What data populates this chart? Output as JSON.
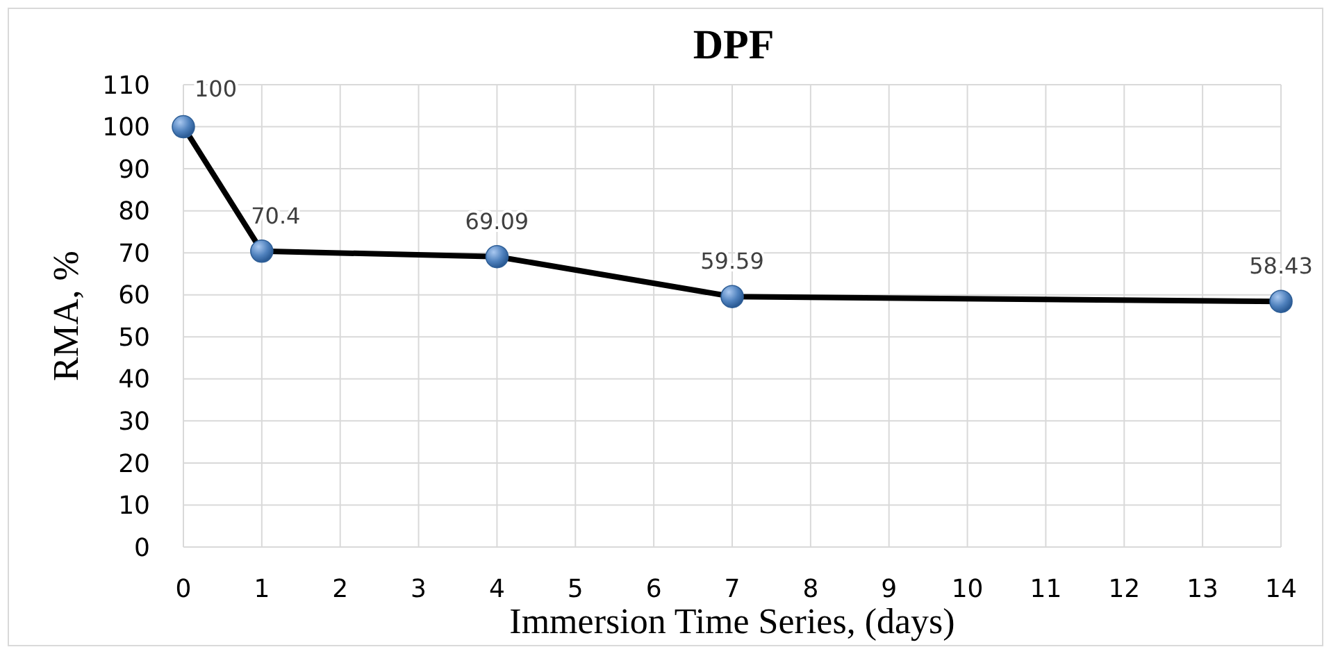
{
  "chart_data": {
    "type": "line",
    "title": "DPF",
    "xlabel": "Immersion Time Series, (days)",
    "ylabel": "RMA, %",
    "x": [
      0,
      1,
      4,
      7,
      14
    ],
    "series": [
      {
        "color": "#000000",
        "values": [
          100,
          70.4,
          69.09,
          59.59,
          58.43
        ]
      }
    ],
    "xlim": [
      0,
      14
    ],
    "xticks": [
      0,
      1,
      2,
      3,
      4,
      5,
      6,
      7,
      8,
      9,
      10,
      11,
      12,
      13,
      14
    ],
    "ylim": [
      0,
      110
    ],
    "yticks": [
      0,
      10,
      20,
      30,
      40,
      50,
      60,
      70,
      80,
      90,
      100,
      110
    ],
    "grid": true,
    "marker": "circle",
    "line_style": "solid",
    "data_labels": true
  }
}
